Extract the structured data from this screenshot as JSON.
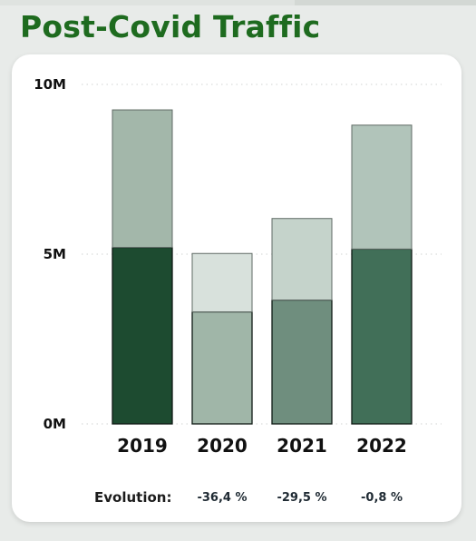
{
  "header": {
    "title": "Post-Covid Traffic"
  },
  "chart_data": {
    "type": "bar",
    "stacked": true,
    "title": "Post-Covid Traffic",
    "xlabel": "",
    "ylabel": "",
    "categories": [
      "2019",
      "2020",
      "2021",
      "2022"
    ],
    "series": [
      {
        "values": [
          5.2,
          3.3,
          3.65,
          5.15
        ],
        "colors": [
          "#1d4b30",
          "#a0b6a8",
          "#6f8e7e",
          "#416f58"
        ]
      },
      {
        "values": [
          4.05,
          1.72,
          2.4,
          3.65
        ],
        "colors": [
          "#a3b7aa",
          "#d8e1dc",
          "#c5d3cb",
          "#b1c4ba"
        ]
      }
    ],
    "ylim": [
      0,
      10
    ],
    "y_ticks": [
      {
        "value": 0,
        "label": "0M"
      },
      {
        "value": 5,
        "label": "5M"
      },
      {
        "value": 10,
        "label": "10M"
      }
    ],
    "gridlines": true,
    "legend": "none",
    "evolution": {
      "label": "Evolution:",
      "values": [
        "-36,4 %",
        "-29,5 %",
        "-0,8 %"
      ]
    }
  }
}
